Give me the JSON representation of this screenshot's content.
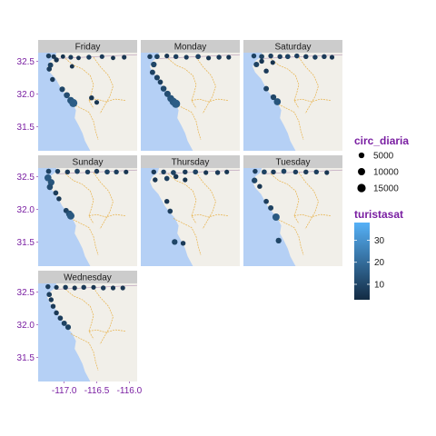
{
  "chart_data": {
    "type": "scatter",
    "facet_variable": "day",
    "panels": [
      {
        "name": "Friday",
        "points": [
          [
            -117.24,
            32.58,
            3000,
            8
          ],
          [
            -117.16,
            32.57,
            2500,
            6
          ],
          [
            -117.02,
            32.57,
            2000,
            5
          ],
          [
            -116.9,
            32.56,
            2500,
            7
          ],
          [
            -116.78,
            32.55,
            2000,
            6
          ],
          [
            -116.62,
            32.56,
            3000,
            8
          ],
          [
            -116.42,
            32.57,
            2500,
            7
          ],
          [
            -116.25,
            32.55,
            2000,
            5
          ],
          [
            -116.08,
            32.56,
            2500,
            6
          ],
          [
            -117.21,
            32.44,
            4000,
            9
          ],
          [
            -117.23,
            32.38,
            3500,
            8
          ],
          [
            -117.12,
            32.52,
            3000,
            6
          ],
          [
            -116.88,
            32.42,
            2000,
            5
          ],
          [
            -117.18,
            32.22,
            3000,
            7
          ],
          [
            -117.03,
            32.07,
            4500,
            10
          ],
          [
            -116.96,
            31.98,
            6000,
            12
          ],
          [
            -116.9,
            31.9,
            9000,
            14
          ],
          [
            -116.86,
            31.86,
            14000,
            16
          ],
          [
            -116.58,
            31.94,
            3000,
            6
          ],
          [
            -116.5,
            31.87,
            2500,
            6
          ]
        ]
      },
      {
        "name": "Monday",
        "points": [
          [
            -117.26,
            32.57,
            3000,
            8
          ],
          [
            -117.15,
            32.57,
            3500,
            9
          ],
          [
            -117.0,
            32.58,
            2500,
            6
          ],
          [
            -116.86,
            32.57,
            3000,
            8
          ],
          [
            -116.7,
            32.56,
            2500,
            7
          ],
          [
            -116.52,
            32.57,
            3500,
            9
          ],
          [
            -116.36,
            32.55,
            2500,
            6
          ],
          [
            -116.2,
            32.56,
            3000,
            7
          ],
          [
            -116.05,
            32.56,
            2500,
            6
          ],
          [
            -117.2,
            32.45,
            5000,
            10
          ],
          [
            -117.22,
            32.33,
            4000,
            9
          ],
          [
            -117.15,
            32.25,
            4500,
            9
          ],
          [
            -117.1,
            32.18,
            3500,
            8
          ],
          [
            -117.05,
            32.08,
            5500,
            11
          ],
          [
            -116.99,
            32.0,
            7000,
            12
          ],
          [
            -116.94,
            31.93,
            9000,
            14
          ],
          [
            -116.9,
            31.88,
            12000,
            15
          ],
          [
            -116.86,
            31.85,
            15000,
            16
          ]
        ]
      },
      {
        "name": "Saturday",
        "points": [
          [
            -117.24,
            32.58,
            3000,
            9
          ],
          [
            -117.12,
            32.57,
            3500,
            9
          ],
          [
            -116.98,
            32.58,
            3000,
            8
          ],
          [
            -116.84,
            32.57,
            3000,
            8
          ],
          [
            -116.72,
            32.57,
            3500,
            9
          ],
          [
            -116.58,
            32.58,
            3000,
            8
          ],
          [
            -116.44,
            32.57,
            3000,
            7
          ],
          [
            -116.3,
            32.56,
            3000,
            8
          ],
          [
            -116.16,
            32.57,
            3000,
            7
          ],
          [
            -116.04,
            32.56,
            2500,
            6
          ],
          [
            -117.2,
            32.45,
            4500,
            9
          ],
          [
            -117.12,
            32.5,
            3000,
            6
          ],
          [
            -116.95,
            32.48,
            2500,
            5
          ],
          [
            -117.05,
            32.35,
            3000,
            7
          ],
          [
            -117.05,
            32.08,
            4000,
            9
          ],
          [
            -116.94,
            31.95,
            5000,
            10
          ],
          [
            -116.88,
            31.88,
            9000,
            14
          ]
        ]
      },
      {
        "name": "Sunday",
        "points": [
          [
            -117.24,
            32.58,
            3500,
            9
          ],
          [
            -117.1,
            32.58,
            3000,
            8
          ],
          [
            -116.95,
            32.57,
            3000,
            7
          ],
          [
            -116.8,
            32.58,
            3500,
            9
          ],
          [
            -116.64,
            32.57,
            3000,
            8
          ],
          [
            -116.5,
            32.58,
            3000,
            7
          ],
          [
            -116.34,
            32.57,
            3500,
            9
          ],
          [
            -116.2,
            32.57,
            3000,
            8
          ],
          [
            -116.05,
            32.57,
            2500,
            6
          ],
          [
            -117.25,
            32.48,
            9000,
            15
          ],
          [
            -117.2,
            32.41,
            8000,
            14
          ],
          [
            -117.22,
            32.34,
            6000,
            12
          ],
          [
            -117.13,
            32.25,
            3500,
            8
          ],
          [
            -117.08,
            32.16,
            3000,
            7
          ],
          [
            -116.97,
            31.98,
            4000,
            9
          ],
          [
            -116.92,
            31.93,
            8000,
            13
          ],
          [
            -116.9,
            31.9,
            11000,
            15
          ]
        ]
      },
      {
        "name": "Thursday",
        "points": [
          [
            -117.2,
            32.57,
            3000,
            7
          ],
          [
            -117.05,
            32.57,
            3000,
            8
          ],
          [
            -116.9,
            32.56,
            3500,
            9
          ],
          [
            -116.72,
            32.57,
            3000,
            7
          ],
          [
            -116.56,
            32.57,
            3500,
            9
          ],
          [
            -116.4,
            32.56,
            2500,
            6
          ],
          [
            -116.22,
            32.56,
            3000,
            7
          ],
          [
            -116.08,
            32.57,
            2500,
            6
          ],
          [
            -117.18,
            32.45,
            3000,
            6
          ],
          [
            -117.0,
            32.47,
            3500,
            8
          ],
          [
            -116.86,
            32.5,
            3000,
            6
          ],
          [
            -116.72,
            32.45,
            2500,
            5
          ],
          [
            -117.0,
            32.12,
            3000,
            6
          ],
          [
            -116.95,
            31.97,
            3500,
            8
          ],
          [
            -116.88,
            31.5,
            5000,
            10
          ],
          [
            -116.75,
            31.48,
            3000,
            7
          ]
        ]
      },
      {
        "name": "Tuesday",
        "points": [
          [
            -117.22,
            32.58,
            3000,
            8
          ],
          [
            -117.08,
            32.57,
            3500,
            9
          ],
          [
            -116.94,
            32.57,
            3000,
            7
          ],
          [
            -116.78,
            32.58,
            3500,
            9
          ],
          [
            -116.6,
            32.57,
            3000,
            8
          ],
          [
            -116.44,
            32.57,
            3000,
            7
          ],
          [
            -116.28,
            32.57,
            3000,
            8
          ],
          [
            -116.12,
            32.56,
            2500,
            6
          ],
          [
            -117.23,
            32.44,
            5000,
            10
          ],
          [
            -117.15,
            32.35,
            3000,
            6
          ],
          [
            -117.05,
            32.12,
            3500,
            8
          ],
          [
            -116.98,
            32.02,
            4000,
            9
          ],
          [
            -116.9,
            31.88,
            10000,
            15
          ],
          [
            -116.86,
            31.52,
            5000,
            10
          ]
        ]
      },
      {
        "name": "Wednesday",
        "points": [
          [
            -117.25,
            32.58,
            3000,
            8
          ],
          [
            -117.12,
            32.57,
            2500,
            6
          ],
          [
            -116.98,
            32.57,
            3000,
            7
          ],
          [
            -116.84,
            32.56,
            2500,
            6
          ],
          [
            -116.7,
            32.57,
            3000,
            7
          ],
          [
            -116.55,
            32.57,
            2500,
            6
          ],
          [
            -116.4,
            32.56,
            3000,
            7
          ],
          [
            -116.25,
            32.56,
            2500,
            6
          ],
          [
            -116.1,
            32.56,
            2500,
            6
          ],
          [
            -117.23,
            32.46,
            3500,
            8
          ],
          [
            -117.2,
            32.38,
            3000,
            7
          ],
          [
            -117.17,
            32.28,
            3000,
            7
          ],
          [
            -117.12,
            32.18,
            3000,
            7
          ],
          [
            -117.06,
            32.1,
            3500,
            8
          ],
          [
            -117.0,
            32.02,
            4000,
            9
          ],
          [
            -116.94,
            31.96,
            4500,
            9
          ]
        ]
      }
    ],
    "x_ticks": [
      -117.0,
      -116.5,
      -116.0
    ],
    "x_tick_labels": [
      "-117.0",
      "-116.5",
      "-116.0"
    ],
    "y_ticks": [
      31.5,
      32.0,
      32.5
    ],
    "y_tick_labels": [
      "31.5",
      "32.0",
      "32.5"
    ],
    "xlim": [
      -117.4,
      -115.88
    ],
    "ylim": [
      31.13,
      32.63
    ],
    "legends": {
      "size": {
        "title": "circ_diaria",
        "breaks": [
          5000,
          10000,
          15000
        ],
        "labels": [
          "5000",
          "10000",
          "15000"
        ]
      },
      "color": {
        "title": "turistasat",
        "breaks": [
          10,
          20,
          30
        ],
        "labels": [
          "10",
          "20",
          "30"
        ],
        "range": [
          3,
          38
        ],
        "low": "#132B43",
        "high": "#56B1F7"
      }
    },
    "colors": {
      "strip_bg": "#cccccc",
      "ocean": "#b5d0f5",
      "land": "#f1efe9",
      "road": "#e8b24a",
      "axis_text": "#7a1fa2"
    }
  }
}
